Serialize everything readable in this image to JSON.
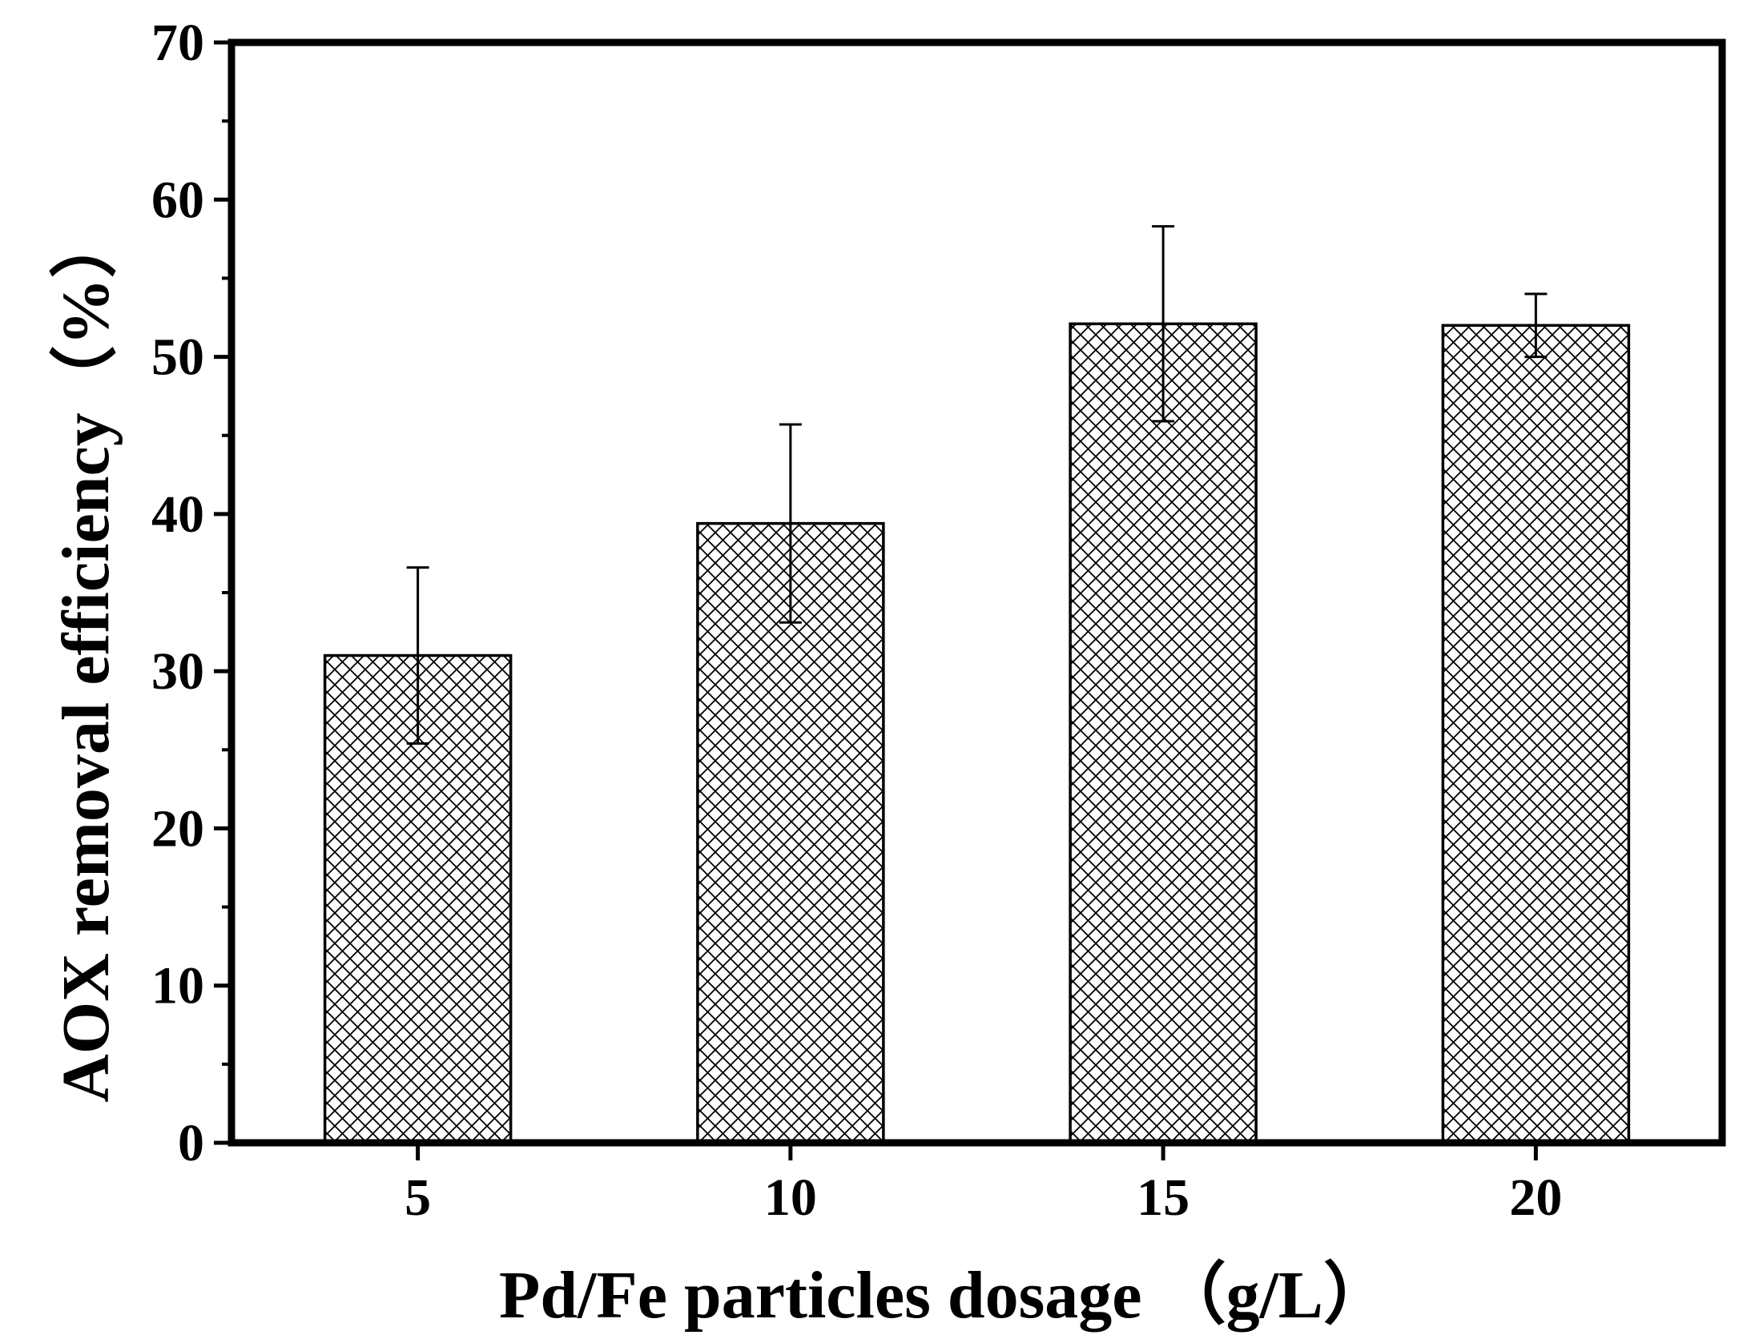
{
  "chart_data": {
    "type": "bar",
    "title": "",
    "xlabel": "Pd/Fe particles dosage （g/L）",
    "ylabel": "AOX removal efficiency（%）",
    "categories": [
      "5",
      "10",
      "15",
      "20"
    ],
    "values": [
      31.0,
      39.4,
      52.1,
      52.0
    ],
    "error": [
      5.6,
      6.3,
      6.2,
      2.0
    ],
    "ylim": [
      0,
      70
    ],
    "yticks": [
      "0",
      "10",
      "20",
      "30",
      "40",
      "50",
      "60",
      "70"
    ],
    "grid": false,
    "legend": "none",
    "fill_pattern": "crosshatch",
    "bar_fill": "#ffffff",
    "line_color": "#000000"
  }
}
